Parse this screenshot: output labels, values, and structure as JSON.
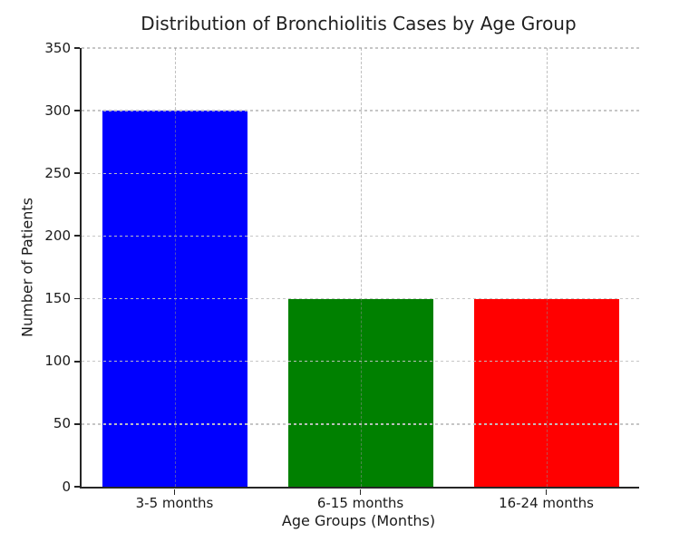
{
  "chart_data": {
    "type": "bar",
    "title": "Distribution of Bronchiolitis Cases by Age Group",
    "xlabel": "Age Groups (Months)",
    "ylabel": "Number of Patients",
    "categories": [
      "3-5 months",
      "6-15 months",
      "16-24 months"
    ],
    "values": [
      300,
      150,
      150
    ],
    "bar_colors": [
      "#0000ff",
      "#008000",
      "#ff0000"
    ],
    "ylim": [
      0,
      350
    ],
    "yticks": [
      0,
      50,
      100,
      150,
      200,
      250,
      300,
      350
    ],
    "grid": "dashed, gray, horizontal at y-ticks and vertical at bar centers, drawn above bars",
    "legend": "none",
    "spines": [
      "left",
      "bottom"
    ]
  }
}
